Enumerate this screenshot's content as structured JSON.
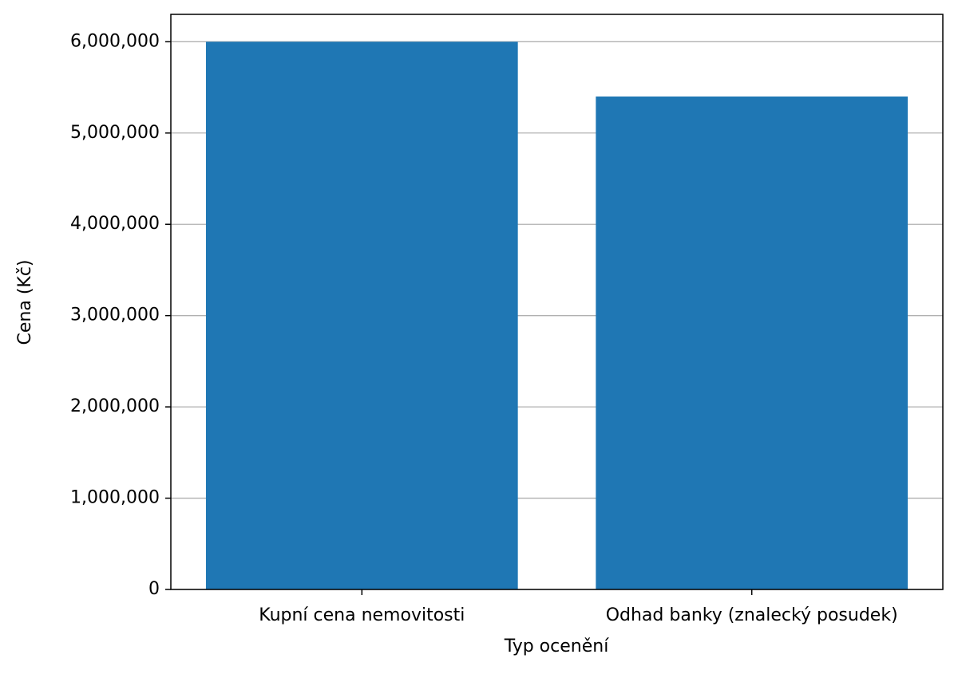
{
  "chart_data": {
    "type": "bar",
    "xlabel": "Typ ocenění",
    "ylabel": "Cena (Kč)",
    "categories": [
      "Kupní cena nemovitosti",
      "Odhad banky (znalecký posudek)"
    ],
    "values": [
      6000000,
      5400000
    ],
    "color": "#1f77b4",
    "ylim": [
      0,
      6300000
    ],
    "yticks": [
      0,
      {
        "value": 1000000,
        "label": "1,000,000"
      },
      {
        "value": 2000000,
        "label": "2,000,000"
      },
      {
        "value": 3000000,
        "label": "3,000,000"
      },
      {
        "value": 4000000,
        "label": "4,000,000"
      },
      {
        "value": 5000000,
        "label": "5,000,000"
      },
      {
        "value": 6000000,
        "label": "6,000,000"
      }
    ],
    "grid": true
  }
}
